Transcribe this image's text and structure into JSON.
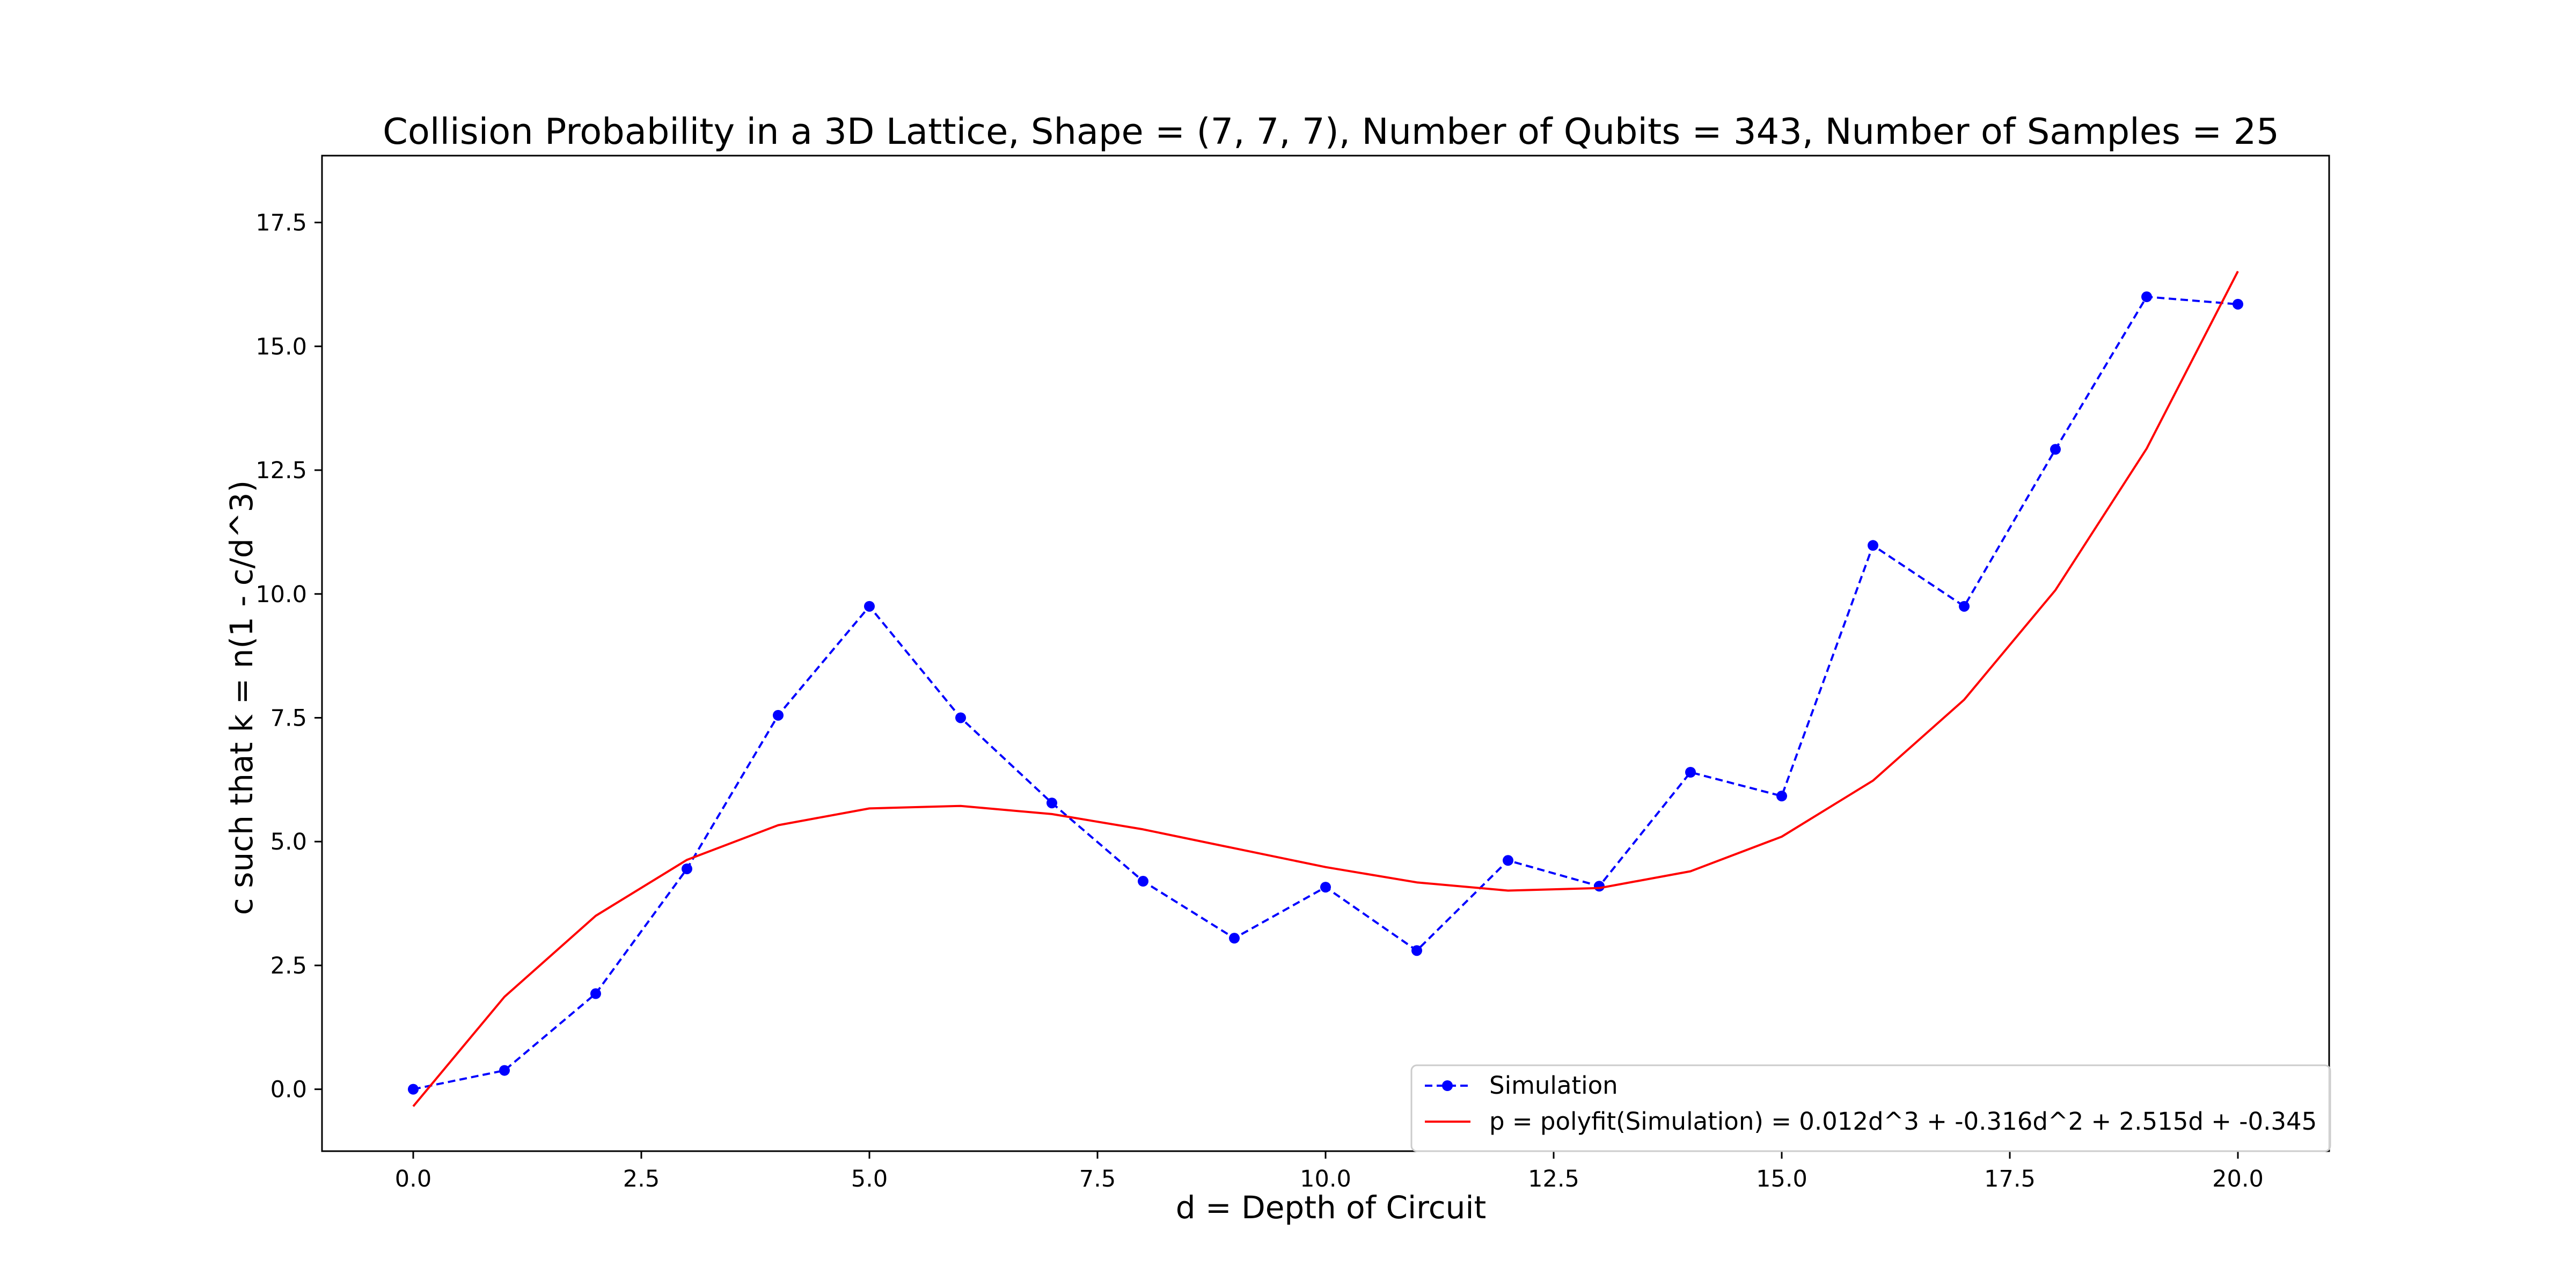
{
  "chart_data": {
    "type": "line",
    "title": "Collision Probability in a 3D Lattice, Shape = (7, 7, 7), Number of Qubits = 343, Number of Samples = 25",
    "xlabel": "d = Depth of Circuit",
    "ylabel": "c such that k = n(1 - c/d^3)",
    "xlim": [
      -1.0,
      21.0
    ],
    "ylim": [
      -1.25,
      18.85
    ],
    "xticks": [
      "0.0",
      "2.5",
      "5.0",
      "7.5",
      "10.0",
      "12.5",
      "15.0",
      "17.5",
      "20.0"
    ],
    "xtick_values": [
      0,
      2.5,
      5,
      7.5,
      10,
      12.5,
      15,
      17.5,
      20
    ],
    "yticks": [
      "0.0",
      "2.5",
      "5.0",
      "7.5",
      "10.0",
      "12.5",
      "15.0",
      "17.5"
    ],
    "ytick_values": [
      0,
      2.5,
      5,
      7.5,
      10,
      12.5,
      15,
      17.5
    ],
    "grid": false,
    "legend_position": "bottom-right",
    "series": [
      {
        "name": "Simulation",
        "style": "dashed-marker",
        "color": "#0000ff",
        "x": [
          0,
          1,
          2,
          3,
          4,
          5,
          6,
          7,
          8,
          9,
          10,
          11,
          12,
          13,
          14,
          15,
          16,
          17,
          18,
          19,
          20
        ],
        "y": [
          0.0,
          0.38,
          1.93,
          4.45,
          7.55,
          9.75,
          7.5,
          5.78,
          4.2,
          3.05,
          4.08,
          2.8,
          4.62,
          4.1,
          6.4,
          5.92,
          10.98,
          9.75,
          12.92,
          16.0,
          15.85
        ]
      },
      {
        "name": "p = polyfit(Simulation) = 0.012d^3 + -0.316d^2 + 2.515d + -0.345",
        "style": "solid",
        "color": "#ff0000",
        "x": [
          0,
          1,
          2,
          3,
          4,
          5,
          6,
          7,
          8,
          9,
          10,
          11,
          12,
          13,
          14,
          15,
          16,
          17,
          18,
          19,
          20
        ],
        "y": [
          -0.345,
          1.866,
          3.501,
          4.632,
          5.331,
          5.67,
          5.721,
          5.556,
          5.247,
          4.866,
          4.485,
          4.176,
          4.011,
          4.062,
          4.401,
          5.1,
          6.231,
          7.866,
          10.077,
          12.936,
          16.515
        ]
      }
    ]
  }
}
